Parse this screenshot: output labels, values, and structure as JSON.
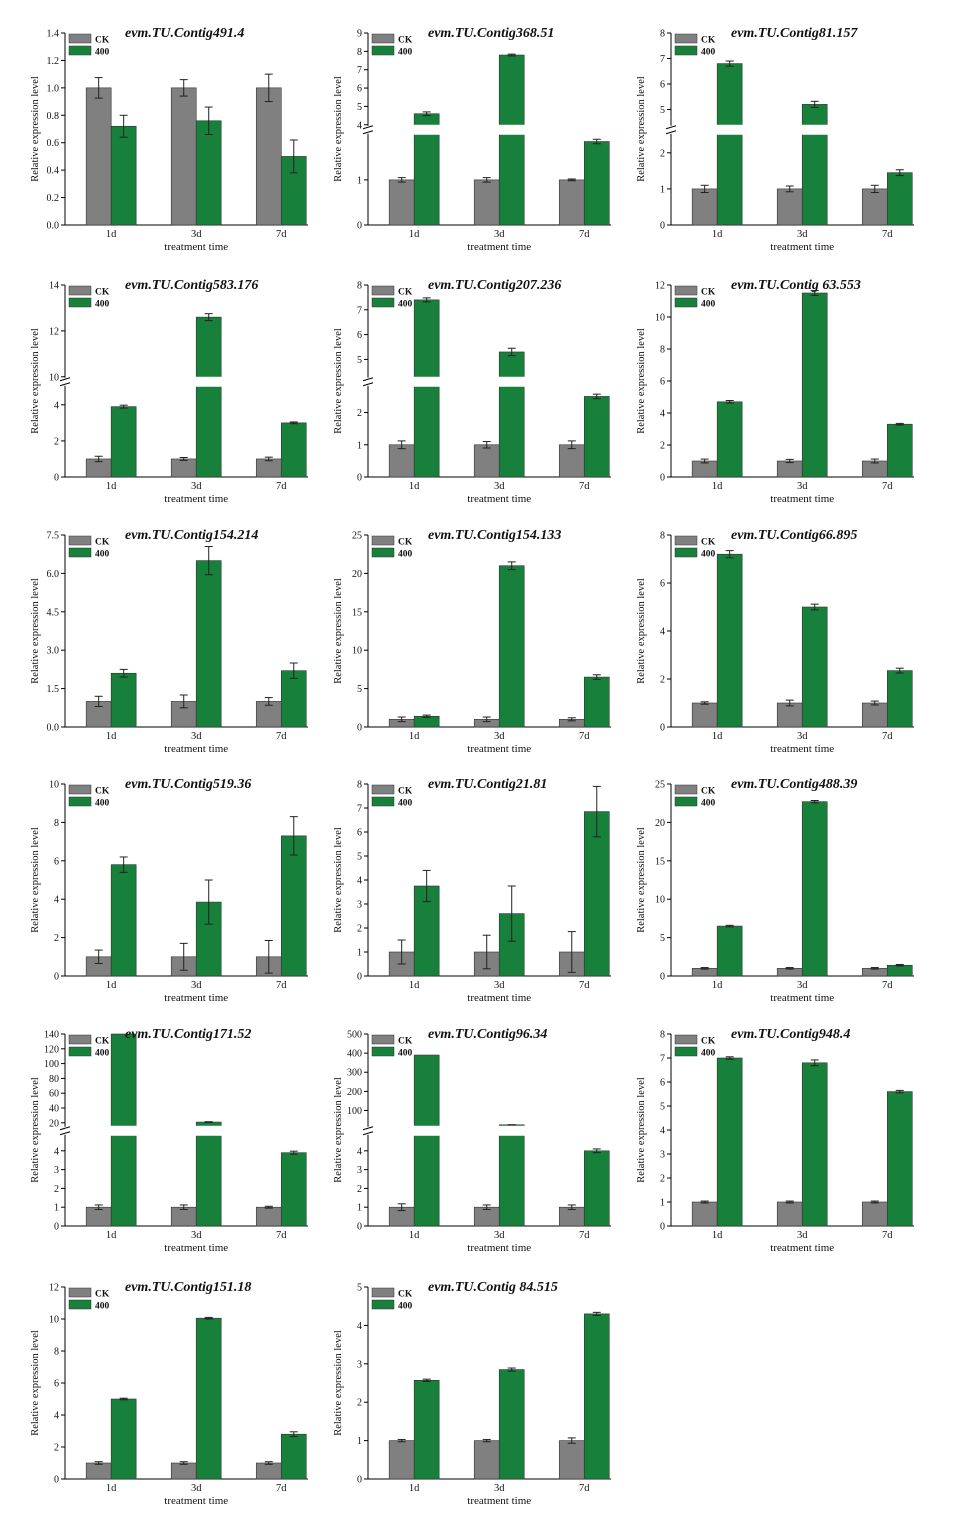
{
  "chart_data": [
    {
      "type": "bar",
      "title": "evm.TU.Contig491.4",
      "xlabel": "treatment time",
      "ylabel": "Relative expression level",
      "categories": [
        "1d",
        "3d",
        "7d"
      ],
      "legend": [
        "CK",
        "400"
      ],
      "colors": {
        "CK": "#808080",
        "400": "#17803a"
      },
      "yticks": [
        "0.0",
        "0.2",
        "0.4",
        "0.6",
        "0.8",
        "1.0",
        "1.2",
        "1.4"
      ],
      "ylim": [
        0,
        1.4
      ],
      "broken": false,
      "series": [
        {
          "name": "CK",
          "values": [
            1.0,
            1.0,
            1.0
          ],
          "errors": [
            0.075,
            0.06,
            0.1
          ]
        },
        {
          "name": "400",
          "values": [
            0.72,
            0.76,
            0.5
          ],
          "errors": [
            0.08,
            0.1,
            0.12
          ]
        }
      ]
    },
    {
      "type": "bar",
      "title": "evm.TU.Contig368.51",
      "xlabel": "treatment time",
      "ylabel": "Relative expression level",
      "categories": [
        "1d",
        "3d",
        "7d"
      ],
      "legend": [
        "CK",
        "400"
      ],
      "colors": {
        "CK": "#808080",
        "400": "#17803a"
      },
      "yticks_low": [
        "0",
        "1"
      ],
      "yticks_high": [
        "4",
        "5",
        "6",
        "7",
        "8",
        "9"
      ],
      "low_range": [
        0,
        2
      ],
      "high_range": [
        4,
        9
      ],
      "broken": true,
      "series": [
        {
          "name": "CK",
          "values": [
            1.0,
            1.0,
            1.0
          ],
          "errors": [
            0.05,
            0.05,
            0.02
          ]
        },
        {
          "name": "400",
          "values": [
            4.6,
            7.8,
            1.85
          ],
          "errors": [
            0.1,
            0.05,
            0.05
          ]
        }
      ]
    },
    {
      "type": "bar",
      "title": "evm.TU.Contig81.157",
      "xlabel": "treatment time",
      "ylabel": "Relative expression level",
      "categories": [
        "1d",
        "3d",
        "7d"
      ],
      "legend": [
        "CK",
        "400"
      ],
      "colors": {
        "CK": "#808080",
        "400": "#17803a"
      },
      "yticks_low": [
        "0",
        "1",
        "2"
      ],
      "yticks_high": [
        "5",
        "6",
        "7",
        "8"
      ],
      "low_range": [
        0,
        2.5
      ],
      "high_range": [
        4.4,
        8
      ],
      "broken": true,
      "series": [
        {
          "name": "CK",
          "values": [
            1.0,
            1.0,
            1.0
          ],
          "errors": [
            0.1,
            0.08,
            0.1
          ]
        },
        {
          "name": "400",
          "values": [
            6.8,
            5.2,
            1.45
          ],
          "errors": [
            0.1,
            0.12,
            0.08
          ]
        }
      ]
    },
    {
      "type": "bar",
      "title": "evm.TU.Contig583.176",
      "xlabel": "treatment time",
      "ylabel": "Relative expression level",
      "categories": [
        "1d",
        "3d",
        "7d"
      ],
      "legend": [
        "CK",
        "400"
      ],
      "colors": {
        "CK": "#808080",
        "400": "#17803a"
      },
      "yticks_low": [
        "0",
        "2",
        "4"
      ],
      "yticks_high": [
        "10",
        "12",
        "14"
      ],
      "low_range": [
        0,
        5
      ],
      "high_range": [
        10,
        14
      ],
      "broken": true,
      "series": [
        {
          "name": "CK",
          "values": [
            1.0,
            1.0,
            1.0
          ],
          "errors": [
            0.15,
            0.08,
            0.1
          ]
        },
        {
          "name": "400",
          "values": [
            3.9,
            12.6,
            3.0
          ],
          "errors": [
            0.08,
            0.15,
            0.05
          ]
        }
      ]
    },
    {
      "type": "bar",
      "title": "evm.TU.Contig207.236",
      "xlabel": "treatment time",
      "ylabel": "Relative expression level",
      "categories": [
        "1d",
        "3d",
        "7d"
      ],
      "legend": [
        "CK",
        "400"
      ],
      "colors": {
        "CK": "#808080",
        "400": "#17803a"
      },
      "yticks_low": [
        "0",
        "1",
        "2"
      ],
      "yticks_high": [
        "5",
        "6",
        "7",
        "8"
      ],
      "low_range": [
        0,
        2.8
      ],
      "high_range": [
        4.3,
        8
      ],
      "broken": true,
      "series": [
        {
          "name": "CK",
          "values": [
            1.0,
            1.0,
            1.0
          ],
          "errors": [
            0.12,
            0.1,
            0.12
          ]
        },
        {
          "name": "400",
          "values": [
            7.4,
            5.3,
            2.5
          ],
          "errors": [
            0.08,
            0.15,
            0.07
          ]
        }
      ]
    },
    {
      "type": "bar",
      "title": "evm.TU.Contig 63.553",
      "xlabel": "treatment time",
      "ylabel": "Relative expression level",
      "categories": [
        "1d",
        "3d",
        "7d"
      ],
      "legend": [
        "CK",
        "400"
      ],
      "colors": {
        "CK": "#808080",
        "400": "#17803a"
      },
      "yticks": [
        "0",
        "2",
        "4",
        "6",
        "8",
        "10",
        "12"
      ],
      "ylim": [
        0,
        12
      ],
      "broken": false,
      "series": [
        {
          "name": "CK",
          "values": [
            1.0,
            1.0,
            1.0
          ],
          "errors": [
            0.12,
            0.1,
            0.12
          ]
        },
        {
          "name": "400",
          "values": [
            4.7,
            11.5,
            3.3
          ],
          "errors": [
            0.08,
            0.15,
            0.05
          ]
        }
      ]
    },
    {
      "type": "bar",
      "title": "evm.TU.Contig154.214",
      "xlabel": "treatment time",
      "ylabel": "Relative expression level",
      "categories": [
        "1d",
        "3d",
        "7d"
      ],
      "legend": [
        "CK",
        "400"
      ],
      "colors": {
        "CK": "#808080",
        "400": "#17803a"
      },
      "yticks": [
        "0.0",
        "1.5",
        "3.0",
        "4.5",
        "6.0",
        "7.5"
      ],
      "ylim": [
        0,
        7.5
      ],
      "broken": false,
      "series": [
        {
          "name": "CK",
          "values": [
            1.0,
            1.0,
            1.0
          ],
          "errors": [
            0.2,
            0.25,
            0.15
          ]
        },
        {
          "name": "400",
          "values": [
            2.1,
            6.5,
            2.2
          ],
          "errors": [
            0.15,
            0.55,
            0.3
          ]
        }
      ]
    },
    {
      "type": "bar",
      "title": "evm.TU.Contig154.133",
      "xlabel": "treatment time",
      "ylabel": "Relative expression level",
      "categories": [
        "1d",
        "3d",
        "7d"
      ],
      "legend": [
        "CK",
        "400"
      ],
      "colors": {
        "CK": "#808080",
        "400": "#17803a"
      },
      "yticks": [
        "0",
        "5",
        "10",
        "15",
        "20",
        "25"
      ],
      "ylim": [
        0,
        25
      ],
      "broken": false,
      "series": [
        {
          "name": "CK",
          "values": [
            1.0,
            1.0,
            1.0
          ],
          "errors": [
            0.3,
            0.3,
            0.2
          ]
        },
        {
          "name": "400",
          "values": [
            1.4,
            21.0,
            6.5
          ],
          "errors": [
            0.15,
            0.5,
            0.3
          ]
        }
      ]
    },
    {
      "type": "bar",
      "title": "evm.TU.Contig66.895",
      "xlabel": "treatment time",
      "ylabel": "Relative expression level",
      "categories": [
        "1d",
        "3d",
        "7d"
      ],
      "legend": [
        "CK",
        "400"
      ],
      "colors": {
        "CK": "#808080",
        "400": "#17803a"
      },
      "yticks": [
        "0",
        "2",
        "4",
        "6",
        "8"
      ],
      "ylim": [
        0,
        8
      ],
      "broken": false,
      "series": [
        {
          "name": "CK",
          "values": [
            1.0,
            1.0,
            1.0
          ],
          "errors": [
            0.05,
            0.12,
            0.08
          ]
        },
        {
          "name": "400",
          "values": [
            7.2,
            5.0,
            2.35
          ],
          "errors": [
            0.15,
            0.12,
            0.1
          ]
        }
      ]
    },
    {
      "type": "bar",
      "title": "evm.TU.Contig519.36",
      "xlabel": "treatment time",
      "ylabel": "Relative expression level",
      "categories": [
        "1d",
        "3d",
        "7d"
      ],
      "legend": [
        "CK",
        "400"
      ],
      "colors": {
        "CK": "#808080",
        "400": "#17803a"
      },
      "yticks": [
        "0",
        "2",
        "4",
        "6",
        "8",
        "10"
      ],
      "ylim": [
        0,
        10
      ],
      "broken": false,
      "series": [
        {
          "name": "CK",
          "values": [
            1.0,
            1.0,
            1.0
          ],
          "errors": [
            0.35,
            0.7,
            0.85
          ]
        },
        {
          "name": "400",
          "values": [
            5.8,
            3.85,
            7.3
          ],
          "errors": [
            0.4,
            1.15,
            1.0
          ]
        }
      ]
    },
    {
      "type": "bar",
      "title": "evm.TU.Contig21.81",
      "xlabel": "treatment time",
      "ylabel": "Relative expression level",
      "categories": [
        "1d",
        "3d",
        "7d"
      ],
      "legend": [
        "CK",
        "400"
      ],
      "colors": {
        "CK": "#808080",
        "400": "#17803a"
      },
      "yticks": [
        "0",
        "1",
        "2",
        "3",
        "4",
        "5",
        "6",
        "7",
        "8"
      ],
      "ylim": [
        0,
        8
      ],
      "broken": false,
      "series": [
        {
          "name": "CK",
          "values": [
            1.0,
            1.0,
            1.0
          ],
          "errors": [
            0.5,
            0.7,
            0.85
          ]
        },
        {
          "name": "400",
          "values": [
            3.75,
            2.6,
            6.85
          ],
          "errors": [
            0.65,
            1.15,
            1.05
          ]
        }
      ]
    },
    {
      "type": "bar",
      "title": "evm.TU.Contig488.39",
      "xlabel": "treatment time",
      "ylabel": "Relative expression level",
      "categories": [
        "1d",
        "3d",
        "7d"
      ],
      "legend": [
        "CK",
        "400"
      ],
      "colors": {
        "CK": "#808080",
        "400": "#17803a"
      },
      "yticks": [
        "0",
        "5",
        "10",
        "15",
        "20",
        "25"
      ],
      "ylim": [
        0,
        25
      ],
      "broken": false,
      "series": [
        {
          "name": "CK",
          "values": [
            1.0,
            1.0,
            1.0
          ],
          "errors": [
            0.1,
            0.1,
            0.1
          ]
        },
        {
          "name": "400",
          "values": [
            6.5,
            22.7,
            1.4
          ],
          "errors": [
            0.1,
            0.15,
            0.1
          ]
        }
      ]
    },
    {
      "type": "bar",
      "title": "evm.TU.Contig171.52",
      "xlabel": "treatment time",
      "ylabel": "Relative expression level",
      "categories": [
        "1d",
        "3d",
        "7d"
      ],
      "legend": [
        "CK",
        "400"
      ],
      "colors": {
        "CK": "#808080",
        "400": "#17803a"
      },
      "yticks_low": [
        "0",
        "1",
        "2",
        "3",
        "4"
      ],
      "yticks_high": [
        "20",
        "40",
        "60",
        "80",
        "100",
        "120",
        "140"
      ],
      "low_range": [
        0,
        4.8
      ],
      "high_range": [
        16,
        140
      ],
      "broken": true,
      "series": [
        {
          "name": "CK",
          "values": [
            1.0,
            1.0,
            1.0
          ],
          "errors": [
            0.12,
            0.12,
            0.05
          ]
        },
        {
          "name": "400",
          "values": [
            140,
            21,
            3.9
          ],
          "errors": [
            0,
            0.5,
            0.08
          ]
        }
      ]
    },
    {
      "type": "bar",
      "title": "evm.TU.Contig96.34",
      "xlabel": "treatment time",
      "ylabel": "Relative expression level",
      "categories": [
        "1d",
        "3d",
        "7d"
      ],
      "legend": [
        "CK",
        "400"
      ],
      "colors": {
        "CK": "#808080",
        "400": "#17803a"
      },
      "yticks_low": [
        "0",
        "1",
        "2",
        "3",
        "4"
      ],
      "yticks_high": [
        "100",
        "200",
        "300",
        "400",
        "500"
      ],
      "low_range": [
        0,
        4.8
      ],
      "high_range": [
        20,
        500
      ],
      "broken": true,
      "series": [
        {
          "name": "CK",
          "values": [
            1.0,
            1.0,
            1.0
          ],
          "errors": [
            0.18,
            0.12,
            0.12
          ]
        },
        {
          "name": "400",
          "values": [
            390,
            25,
            4.0
          ],
          "errors": [
            0,
            0.5,
            0.1
          ]
        }
      ]
    },
    {
      "type": "bar",
      "title": "evm.TU.Contig948.4",
      "xlabel": "treatment time",
      "ylabel": "Relative expression level",
      "categories": [
        "1d",
        "3d",
        "7d"
      ],
      "legend": [
        "CK",
        "400"
      ],
      "colors": {
        "CK": "#808080",
        "400": "#17803a"
      },
      "yticks": [
        "0",
        "1",
        "2",
        "3",
        "4",
        "5",
        "6",
        "7",
        "8"
      ],
      "ylim": [
        0,
        8
      ],
      "broken": false,
      "series": [
        {
          "name": "CK",
          "values": [
            1.0,
            1.0,
            1.0
          ],
          "errors": [
            0.04,
            0.04,
            0.04
          ]
        },
        {
          "name": "400",
          "values": [
            7.0,
            6.8,
            5.6
          ],
          "errors": [
            0.05,
            0.12,
            0.05
          ]
        }
      ]
    },
    {
      "type": "bar",
      "title": "evm.TU.Contig151.18",
      "xlabel": "treatment time",
      "ylabel": "Relative expression level",
      "categories": [
        "1d",
        "3d",
        "7d"
      ],
      "legend": [
        "CK",
        "400"
      ],
      "colors": {
        "CK": "#808080",
        "400": "#17803a"
      },
      "yticks": [
        "0",
        "2",
        "4",
        "6",
        "8",
        "10",
        "12"
      ],
      "ylim": [
        0,
        12
      ],
      "broken": false,
      "series": [
        {
          "name": "CK",
          "values": [
            1.0,
            1.0,
            1.0
          ],
          "errors": [
            0.08,
            0.08,
            0.08
          ]
        },
        {
          "name": "400",
          "values": [
            5.0,
            10.05,
            2.8
          ],
          "errors": [
            0.05,
            0.05,
            0.15
          ]
        }
      ]
    },
    {
      "type": "bar",
      "title": "evm.TU.Contig 84.515",
      "xlabel": "treatment time",
      "ylabel": "Relative expression level",
      "categories": [
        "1d",
        "3d",
        "7d"
      ],
      "legend": [
        "CK",
        "400"
      ],
      "colors": {
        "CK": "#808080",
        "400": "#17803a"
      },
      "yticks": [
        "0",
        "1",
        "2",
        "3",
        "4",
        "5"
      ],
      "ylim": [
        0,
        5
      ],
      "broken": false,
      "series": [
        {
          "name": "CK",
          "values": [
            1.0,
            1.0,
            1.0
          ],
          "errors": [
            0.03,
            0.03,
            0.07
          ]
        },
        {
          "name": "400",
          "values": [
            2.57,
            2.85,
            4.3
          ],
          "errors": [
            0.03,
            0.04,
            0.04
          ]
        }
      ]
    }
  ]
}
